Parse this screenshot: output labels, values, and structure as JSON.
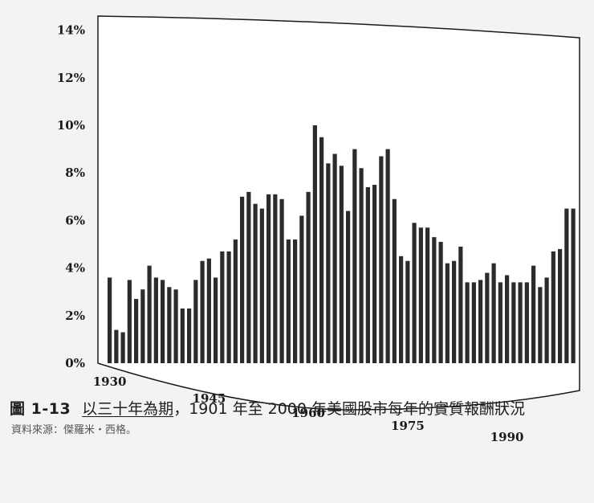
{
  "figure": {
    "number": "圖 1-13",
    "title_emphasis": "以三十年為期",
    "title_rest": "，1901 年至 2000 年美國股市每年的實質報酬狀況",
    "source": "資料來源：傑羅米・西格。"
  },
  "chart_data": {
    "type": "bar",
    "y_ticks": [
      "0%",
      "2%",
      "4%",
      "6%",
      "8%",
      "10%",
      "12%",
      "14%"
    ],
    "x_ticks": [
      "1930",
      "1945",
      "1960",
      "1975",
      "1990"
    ],
    "ylim": [
      0,
      14
    ],
    "categories": [
      1930,
      1931,
      1932,
      1933,
      1934,
      1935,
      1936,
      1937,
      1938,
      1939,
      1940,
      1941,
      1942,
      1943,
      1944,
      1945,
      1946,
      1947,
      1948,
      1949,
      1950,
      1951,
      1952,
      1953,
      1954,
      1955,
      1956,
      1957,
      1958,
      1959,
      1960,
      1961,
      1962,
      1963,
      1964,
      1965,
      1966,
      1967,
      1968,
      1969,
      1970,
      1971,
      1972,
      1973,
      1974,
      1975,
      1976,
      1977,
      1978,
      1979,
      1980,
      1981,
      1982,
      1983,
      1984,
      1985,
      1986,
      1987,
      1988,
      1989,
      1990,
      1991,
      1992,
      1993,
      1994,
      1995,
      1996,
      1997,
      1998,
      1999,
      2000
    ],
    "values": [
      3.6,
      1.4,
      1.3,
      3.5,
      2.7,
      3.1,
      4.1,
      3.6,
      3.5,
      3.2,
      3.1,
      2.3,
      2.3,
      3.5,
      4.3,
      4.4,
      3.6,
      4.7,
      4.7,
      5.2,
      7.0,
      7.2,
      6.7,
      6.5,
      7.1,
      7.1,
      6.9,
      5.2,
      5.2,
      6.2,
      7.2,
      10.0,
      9.5,
      8.4,
      8.8,
      8.3,
      6.4,
      9.0,
      8.2,
      7.4,
      7.5,
      8.7,
      9.0,
      6.9,
      4.5,
      4.3,
      5.9,
      5.7,
      5.7,
      5.3,
      5.1,
      4.2,
      4.3,
      4.9,
      3.4,
      3.4,
      3.5,
      3.8,
      4.2,
      3.4,
      3.7,
      3.4,
      3.4,
      3.4,
      4.1,
      3.2,
      3.6,
      4.7,
      4.8,
      6.5,
      6.5
    ]
  }
}
